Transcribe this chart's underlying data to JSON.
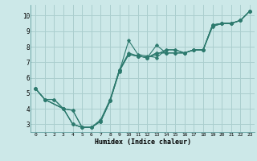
{
  "xlabel": "Humidex (Indice chaleur)",
  "bg_color": "#cce8e8",
  "line_color": "#2d7a6e",
  "grid_color": "#aacece",
  "xlim": [
    -0.5,
    23.5
  ],
  "ylim": [
    2.5,
    10.7
  ],
  "yticks": [
    3,
    4,
    5,
    6,
    7,
    8,
    9,
    10
  ],
  "xticks": [
    0,
    1,
    2,
    3,
    4,
    5,
    6,
    7,
    8,
    9,
    10,
    11,
    12,
    13,
    14,
    15,
    16,
    17,
    18,
    19,
    20,
    21,
    22,
    23
  ],
  "series": [
    {
      "x": [
        0,
        1,
        3,
        4,
        5,
        6,
        7,
        8,
        9,
        10,
        11,
        12,
        13,
        14,
        15,
        16,
        17,
        18,
        19,
        20,
        21,
        22,
        23
      ],
      "y": [
        5.3,
        4.6,
        4.0,
        3.0,
        2.8,
        2.8,
        3.2,
        4.5,
        6.4,
        8.4,
        7.5,
        7.4,
        7.3,
        7.8,
        7.8,
        7.6,
        7.8,
        7.8,
        9.3,
        9.5,
        9.5,
        9.7,
        10.3
      ]
    },
    {
      "x": [
        0,
        1,
        3,
        4,
        5,
        6,
        7,
        8,
        9,
        10,
        11,
        12,
        13,
        14,
        15,
        16,
        17,
        18,
        19,
        20,
        21,
        22,
        23
      ],
      "y": [
        5.3,
        4.6,
        4.0,
        3.0,
        2.8,
        2.8,
        3.3,
        4.6,
        6.5,
        7.5,
        7.4,
        7.3,
        7.5,
        7.8,
        7.8,
        7.6,
        7.8,
        7.8,
        9.3,
        9.5,
        9.5,
        9.7,
        10.3
      ]
    },
    {
      "x": [
        0,
        1,
        3,
        4,
        5,
        6,
        7,
        8,
        9,
        10,
        11,
        12,
        13,
        14,
        15,
        16,
        17,
        18,
        19,
        20,
        21,
        22,
        23
      ],
      "y": [
        5.3,
        4.6,
        4.0,
        3.0,
        2.8,
        2.8,
        3.2,
        4.5,
        6.5,
        7.5,
        7.4,
        7.3,
        8.1,
        7.6,
        7.6,
        7.6,
        7.8,
        7.8,
        9.4,
        9.5,
        9.5,
        9.7,
        10.3
      ]
    },
    {
      "x": [
        0,
        1,
        2,
        3,
        4,
        5,
        6,
        7,
        8,
        9,
        10,
        11,
        12,
        13,
        14,
        15,
        16,
        17,
        18,
        19,
        20,
        21,
        22,
        23
      ],
      "y": [
        5.3,
        4.6,
        4.6,
        4.0,
        3.9,
        2.8,
        2.8,
        3.2,
        4.5,
        6.4,
        7.5,
        7.4,
        7.3,
        7.6,
        7.6,
        7.6,
        7.6,
        7.8,
        7.8,
        9.4,
        9.5,
        9.5,
        9.7,
        10.3
      ]
    },
    {
      "x": [
        0,
        1,
        2,
        3,
        4,
        5,
        6,
        7,
        8,
        9,
        10,
        11,
        12,
        13,
        14,
        15,
        16,
        17,
        18,
        19,
        20,
        21,
        22,
        23
      ],
      "y": [
        5.3,
        4.6,
        4.6,
        4.0,
        3.9,
        2.8,
        2.8,
        3.2,
        4.5,
        6.5,
        7.6,
        7.4,
        7.3,
        7.6,
        7.6,
        7.6,
        7.6,
        7.8,
        7.8,
        9.4,
        9.5,
        9.5,
        9.7,
        10.3
      ]
    }
  ]
}
